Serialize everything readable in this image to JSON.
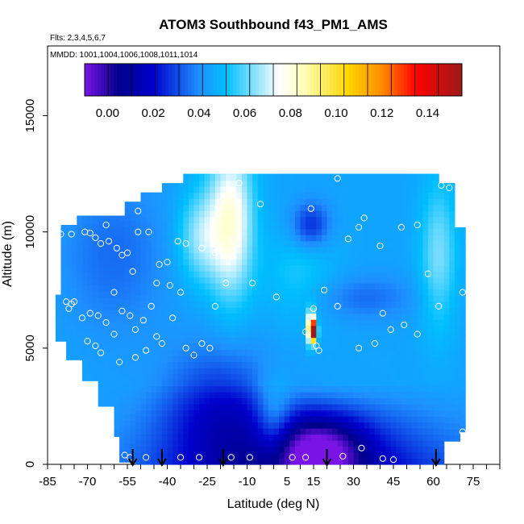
{
  "chart_data": {
    "type": "heatmap",
    "title": "ATOM3 Southbound f43_PM1_AMS",
    "flights_label": "Flts: 2,3,4,5,6,7",
    "dates_label": "MMDD: 1001,1004,1006,1008,1011,1014",
    "xlabel": "Latitude (deg N)",
    "ylabel": "Altitude (m)",
    "xlim": [
      -85,
      85
    ],
    "ylim": [
      0,
      18000
    ],
    "x_tick_values": [
      -85,
      -70,
      -55,
      -40,
      -25,
      -10,
      5,
      15,
      30,
      45,
      60,
      75
    ],
    "x_tick_labels": [
      "-85",
      "-70",
      "-55",
      "-40",
      "-25",
      "-10",
      "5",
      "15",
      "30",
      "45",
      "60",
      "75"
    ],
    "y_tick_values": [
      0,
      5000,
      10000,
      15000
    ],
    "y_tick_labels": [
      "0",
      "5000",
      "10000",
      "15000"
    ],
    "colorbar": {
      "min": -0.01,
      "max": 0.155,
      "tick_values": [
        0.0,
        0.02,
        0.04,
        0.06,
        0.08,
        0.1,
        0.12,
        0.14
      ],
      "tick_labels": [
        "0.00",
        "0.02",
        "0.04",
        "0.06",
        "0.08",
        "0.10",
        "0.12",
        "0.14"
      ],
      "colors": [
        "#7a14e6",
        "#00008b",
        "#0000cd",
        "#1e90ff",
        "#00bfff",
        "#ffffff",
        "#ffffc0",
        "#ffd700",
        "#ff8c00",
        "#ff0000",
        "#9b1b1b"
      ]
    },
    "arrows_latitude": [
      -53,
      -42,
      -19,
      20,
      61
    ],
    "sample_points": [
      [
        -80,
        9900
      ],
      [
        -76,
        9900
      ],
      [
        -71,
        10000
      ],
      [
        -69,
        9950
      ],
      [
        -67,
        9750
      ],
      [
        -65,
        9500
      ],
      [
        -62,
        9600
      ],
      [
        -59,
        9300
      ],
      [
        -57,
        9000
      ],
      [
        -55,
        9100
      ],
      [
        -53,
        8300
      ],
      [
        -51,
        10000
      ],
      [
        -47,
        10000
      ],
      [
        -43,
        8600
      ],
      [
        -40,
        8700
      ],
      [
        -36,
        9600
      ],
      [
        -33,
        9500
      ],
      [
        -27,
        9300
      ],
      [
        -22,
        9100
      ],
      [
        -16,
        9700
      ],
      [
        -13,
        12100
      ],
      [
        -18,
        7800
      ],
      [
        -22,
        6800
      ],
      [
        -78,
        7000
      ],
      [
        -77,
        6700
      ],
      [
        -72,
        6300
      ],
      [
        -69,
        6500
      ],
      [
        -66,
        6400
      ],
      [
        -63,
        6100
      ],
      [
        -60,
        7400
      ],
      [
        -57,
        6600
      ],
      [
        -54,
        6400
      ],
      [
        -52,
        5800
      ],
      [
        -49,
        6200
      ],
      [
        -46,
        6800
      ],
      [
        -44,
        5500
      ],
      [
        -42,
        5200
      ],
      [
        -38,
        6300
      ],
      [
        -33,
        5000
      ],
      [
        -30,
        4700
      ],
      [
        -27,
        5200
      ],
      [
        -24,
        5000
      ],
      [
        -70,
        5300
      ],
      [
        -67,
        5100
      ],
      [
        -65,
        4800
      ],
      [
        -60,
        5600
      ],
      [
        -58,
        4400
      ],
      [
        -52,
        4600
      ],
      [
        -48,
        4900
      ],
      [
        -39,
        7700
      ],
      [
        -35,
        7400
      ],
      [
        -44,
        7800
      ],
      [
        -63,
        10300
      ],
      [
        -60,
        11100
      ],
      [
        -56,
        12000
      ],
      [
        -51,
        10900
      ],
      [
        -58,
        12200
      ],
      [
        -8,
        7800
      ],
      [
        1,
        7200
      ],
      [
        -5,
        11200
      ],
      [
        14,
        11000
      ],
      [
        24,
        12300
      ],
      [
        28,
        9700
      ],
      [
        32,
        10200
      ],
      [
        34,
        10600
      ],
      [
        40,
        9400
      ],
      [
        48,
        10200
      ],
      [
        54,
        10300
      ],
      [
        58,
        8200
      ],
      [
        63,
        12000
      ],
      [
        66,
        11900
      ],
      [
        71,
        7400
      ],
      [
        62,
        6800
      ],
      [
        54,
        5600
      ],
      [
        49,
        6000
      ],
      [
        44,
        5800
      ],
      [
        41,
        6500
      ],
      [
        38,
        5200
      ],
      [
        32,
        5000
      ],
      [
        24,
        6800
      ],
      [
        19,
        7500
      ],
      [
        15,
        6700
      ],
      [
        16,
        5100
      ],
      [
        17,
        4900
      ],
      [
        12,
        5700
      ],
      [
        12,
        300
      ],
      [
        7,
        300
      ],
      [
        -9,
        300
      ],
      [
        -16,
        300
      ],
      [
        -28,
        300
      ],
      [
        -35,
        300
      ],
      [
        -48,
        300
      ],
      [
        -54,
        300
      ],
      [
        -56,
        400
      ],
      [
        26,
        350
      ],
      [
        33,
        700
      ],
      [
        41,
        250
      ],
      [
        45,
        200
      ],
      [
        71,
        1400
      ],
      [
        -75,
        7000
      ],
      [
        -76,
        6900
      ]
    ]
  }
}
